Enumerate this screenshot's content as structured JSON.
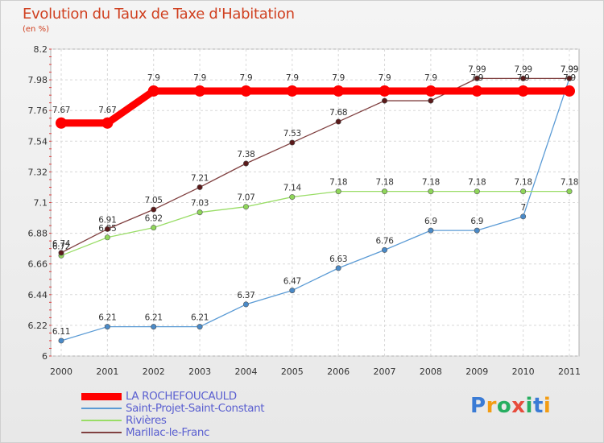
{
  "header": {
    "title": "Evolution du Taux de Taxe d'Habitation",
    "unit": "(en %)"
  },
  "chart_data": {
    "type": "line",
    "title": "Evolution du Taux de Taxe d'Habitation",
    "ylabel": "(en %)",
    "xlabel": "",
    "ylim": [
      6,
      8.2
    ],
    "yticks": [
      "6",
      "6.22",
      "6.44",
      "6.66",
      "6.88",
      "7.1",
      "7.32",
      "7.54",
      "7.76",
      "7.98",
      "8.2"
    ],
    "categories": [
      "2000",
      "2001",
      "2002",
      "2003",
      "2004",
      "2005",
      "2006",
      "2007",
      "2008",
      "2009",
      "2010",
      "2011"
    ],
    "series": [
      {
        "name": "LA ROCHEFOUCAULD",
        "color": "#ff0000",
        "values": [
          7.67,
          7.67,
          7.9,
          7.9,
          7.9,
          7.9,
          7.9,
          7.9,
          7.9,
          7.9,
          7.9,
          7.9
        ],
        "labels": [
          "7.67",
          "7.67",
          "7.9",
          "7.9",
          "7.9",
          "7.9",
          "7.9",
          "7.9",
          "7.9",
          "7.9",
          "7.9",
          "7.9"
        ]
      },
      {
        "name": "Saint-Projet-Saint-Constant",
        "color": "#5b9bd5",
        "values": [
          6.11,
          6.21,
          6.21,
          6.21,
          6.37,
          6.47,
          6.63,
          6.76,
          6.9,
          6.9,
          7,
          7.99
        ],
        "labels": [
          "6.11",
          "6.21",
          "6.21",
          "6.21",
          "6.37",
          "6.47",
          "6.63",
          "6.76",
          "6.9",
          "6.9",
          "7",
          "7.99"
        ]
      },
      {
        "name": "Rivières",
        "color": "#99dd66",
        "values": [
          6.72,
          6.85,
          6.92,
          7.03,
          7.07,
          7.14,
          7.18,
          7.18,
          7.18,
          7.18,
          7.18,
          7.18
        ],
        "labels": [
          "6.72",
          "6.85",
          "6.92",
          "7.03",
          "7.07",
          "7.14",
          "7.18",
          "7.18",
          "7.18",
          "7.18",
          "7.18",
          "7.18"
        ]
      },
      {
        "name": "Marillac-le-Franc",
        "color": "#804040",
        "values": [
          6.74,
          6.91,
          7.05,
          7.21,
          7.38,
          7.53,
          7.68,
          7.83,
          7.83,
          7.99,
          7.99,
          7.99
        ],
        "labels": [
          "6.74",
          "6.91",
          "7.05",
          "7.21",
          "7.38",
          "7.53",
          "7.68",
          "7.83",
          "7.83",
          "7.99",
          "7.99",
          "7.99"
        ]
      }
    ]
  },
  "legend": {
    "items": [
      {
        "label": "LA ROCHEFOUCAULD",
        "color": "#ff0000"
      },
      {
        "label": "Saint-Projet-Saint-Constant",
        "color": "#5b9bd5"
      },
      {
        "label": "Rivières",
        "color": "#99dd66"
      },
      {
        "label": "Marillac-le-Franc",
        "color": "#804040"
      }
    ]
  },
  "logo": {
    "letters": [
      "P",
      "r",
      "o",
      "x",
      "i",
      "t",
      "i"
    ],
    "colors": [
      "#3a7bd5",
      "#f39c12",
      "#27ae60",
      "#e74c3c",
      "#27ae60",
      "#3a7bd5",
      "#f39c12"
    ]
  }
}
